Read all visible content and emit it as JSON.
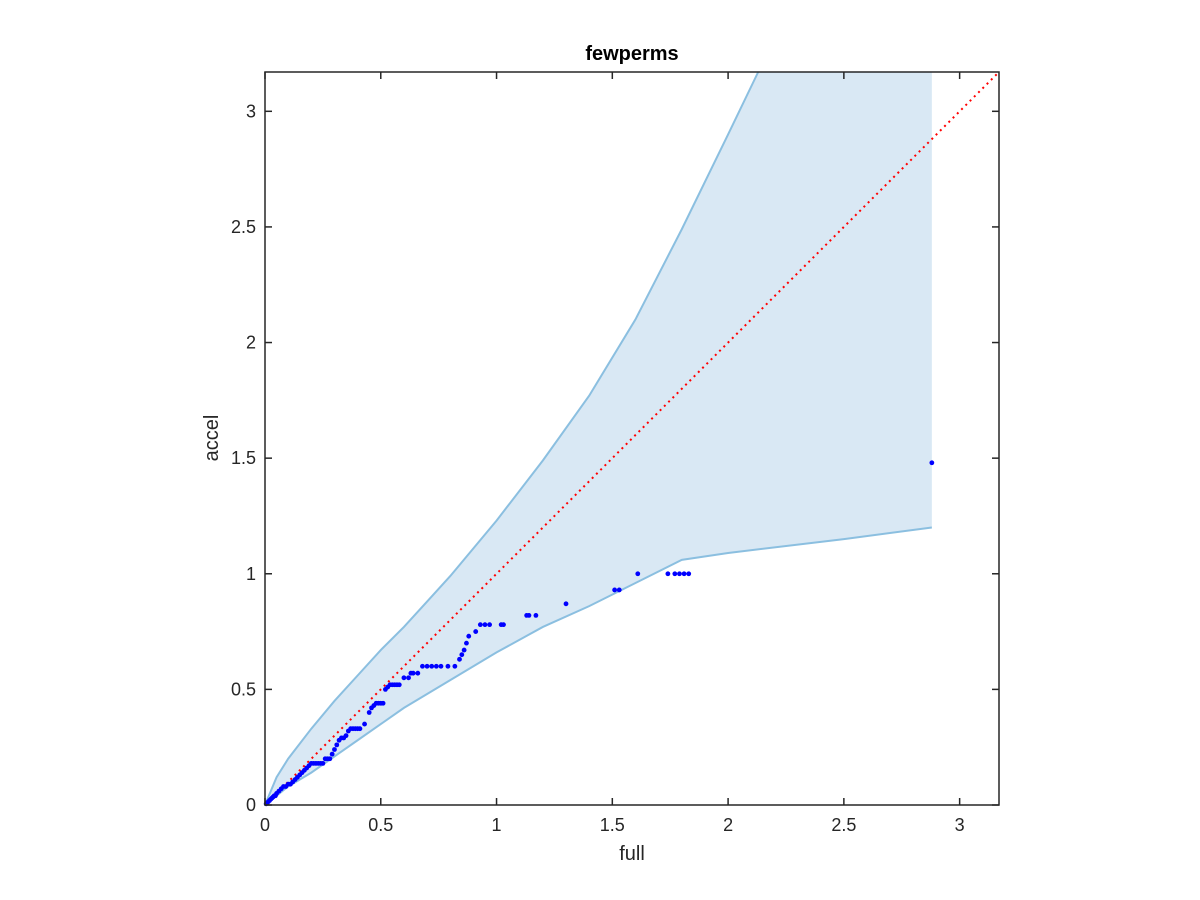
{
  "chart_data": {
    "type": "scatter",
    "title": "fewperms",
    "xlabel": "full",
    "ylabel": "accel",
    "xlim": [
      0,
      3.17
    ],
    "ylim": [
      0,
      3.17
    ],
    "xticks": [
      0,
      0.5,
      1,
      1.5,
      2,
      2.5,
      3
    ],
    "yticks": [
      0,
      0.5,
      1,
      1.5,
      2,
      2.5,
      3
    ],
    "xtick_labels": [
      "0",
      "0.5",
      "1",
      "1.5",
      "2",
      "2.5",
      "3"
    ],
    "ytick_labels": [
      "0",
      "0.5",
      "1",
      "1.5",
      "2",
      "2.5",
      "3"
    ],
    "grid": false,
    "colors": {
      "points": "#0000ff",
      "reference_line": "#ff0000",
      "band_fill": "#d9e8f4",
      "band_edge": "#8bbfe0",
      "axes": "#262626"
    },
    "reference_line": {
      "x": [
        0,
        3.17
      ],
      "y": [
        0,
        3.17
      ]
    },
    "band": {
      "upper": {
        "x": [
          0,
          0.05,
          0.1,
          0.2,
          0.3,
          0.4,
          0.5,
          0.6,
          0.7,
          0.8,
          0.9,
          1.0,
          1.2,
          1.4,
          1.6,
          1.8,
          2.0,
          2.13
        ],
        "y": [
          0,
          0.12,
          0.2,
          0.33,
          0.45,
          0.56,
          0.67,
          0.77,
          0.88,
          0.99,
          1.11,
          1.23,
          1.49,
          1.77,
          2.1,
          2.49,
          2.9,
          3.17
        ]
      },
      "upper_top_edge_x": [
        2.13,
        2.88
      ],
      "lower": {
        "x": [
          0,
          0.05,
          0.1,
          0.2,
          0.3,
          0.4,
          0.5,
          0.6,
          0.7,
          0.8,
          0.9,
          1.0,
          1.2,
          1.4,
          1.6,
          1.8,
          2.0,
          2.5,
          2.88
        ],
        "y": [
          0,
          0.04,
          0.08,
          0.14,
          0.21,
          0.28,
          0.35,
          0.42,
          0.48,
          0.54,
          0.6,
          0.66,
          0.77,
          0.86,
          0.96,
          1.06,
          1.09,
          1.15,
          1.2
        ]
      }
    },
    "series": [
      {
        "x": [
          0.005,
          0.01,
          0.015,
          0.02,
          0.025,
          0.03,
          0.035,
          0.04,
          0.045,
          0.05,
          0.06,
          0.07,
          0.08,
          0.09,
          0.1,
          0.11,
          0.12,
          0.13,
          0.14,
          0.15,
          0.16,
          0.17,
          0.18,
          0.19,
          0.2,
          0.21,
          0.22,
          0.23,
          0.24,
          0.25,
          0.26,
          0.27,
          0.28,
          0.29,
          0.3,
          0.31,
          0.32,
          0.33,
          0.34,
          0.35,
          0.36,
          0.37,
          0.38,
          0.39,
          0.4,
          0.41,
          0.43,
          0.45,
          0.46,
          0.47,
          0.48,
          0.49,
          0.5,
          0.51,
          0.52,
          0.53,
          0.54,
          0.55,
          0.56,
          0.57,
          0.58,
          0.6,
          0.62,
          0.63,
          0.64,
          0.66,
          0.68,
          0.7,
          0.72,
          0.74,
          0.76,
          0.79,
          0.82,
          0.84,
          0.85,
          0.86,
          0.87,
          0.88,
          0.91,
          0.93,
          0.95,
          0.97,
          1.02,
          1.03,
          1.13,
          1.14,
          1.17,
          1.3,
          1.51,
          1.53,
          1.61,
          1.74,
          1.77,
          1.79,
          1.81,
          1.83,
          2.88
        ],
        "y": [
          0.005,
          0.01,
          0.015,
          0.02,
          0.025,
          0.03,
          0.035,
          0.04,
          0.04,
          0.05,
          0.06,
          0.07,
          0.08,
          0.08,
          0.09,
          0.09,
          0.1,
          0.11,
          0.12,
          0.13,
          0.14,
          0.15,
          0.16,
          0.17,
          0.18,
          0.18,
          0.18,
          0.18,
          0.18,
          0.18,
          0.2,
          0.2,
          0.2,
          0.22,
          0.24,
          0.26,
          0.28,
          0.29,
          0.29,
          0.3,
          0.32,
          0.33,
          0.33,
          0.33,
          0.33,
          0.33,
          0.35,
          0.4,
          0.42,
          0.43,
          0.44,
          0.44,
          0.44,
          0.44,
          0.5,
          0.51,
          0.52,
          0.52,
          0.52,
          0.52,
          0.52,
          0.55,
          0.55,
          0.57,
          0.57,
          0.57,
          0.6,
          0.6,
          0.6,
          0.6,
          0.6,
          0.6,
          0.6,
          0.63,
          0.65,
          0.67,
          0.7,
          0.73,
          0.75,
          0.78,
          0.78,
          0.78,
          0.78,
          0.78,
          0.82,
          0.82,
          0.82,
          0.87,
          0.93,
          0.93,
          1.0,
          1.0,
          1.0,
          1.0,
          1.0,
          1.0,
          1.48
        ]
      }
    ]
  }
}
